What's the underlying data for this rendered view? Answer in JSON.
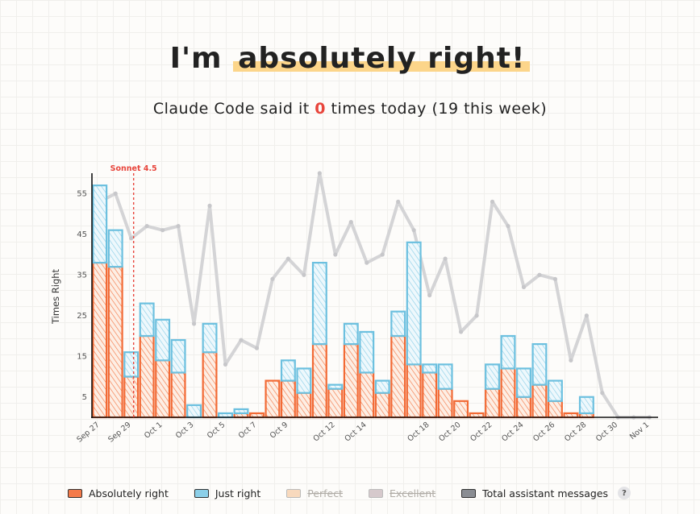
{
  "header": {
    "title_prefix": "I'm ",
    "title_highlight": "absolutely right!",
    "subtitle_before": "Claude Code said it ",
    "today_count": "0",
    "subtitle_after": " times today (19 this week)"
  },
  "legend": {
    "items": [
      {
        "label": "Absolutely right",
        "color": "#f47a4a",
        "enabled": true
      },
      {
        "label": "Just right",
        "color": "#8ccfe8",
        "enabled": true
      },
      {
        "label": "Perfect",
        "color": "#f8d9bd",
        "enabled": false
      },
      {
        "label": "Excellent",
        "color": "#d6c9cc",
        "enabled": false
      },
      {
        "label": "Total assistant messages",
        "color": "#8a8d93",
        "enabled": true
      }
    ],
    "help_label": "?"
  },
  "chart_data": {
    "type": "bar",
    "stacked": true,
    "ylabel": "Times Right",
    "xlabel": "",
    "ylim": [
      0,
      60
    ],
    "yticks": [
      5,
      15,
      25,
      35,
      45,
      55
    ],
    "x": [
      "Sep 27",
      "Sep 28",
      "Sep 29",
      "Sep 30",
      "Oct 1",
      "Oct 2",
      "Oct 3",
      "Oct 4",
      "Oct 5",
      "Oct 6",
      "Oct 7",
      "Oct 8",
      "Oct 9",
      "Oct 10",
      "Oct 11",
      "Oct 12",
      "Oct 13",
      "Oct 14",
      "Oct 15",
      "Oct 16",
      "Oct 17",
      "Oct 18",
      "Oct 19",
      "Oct 20",
      "Oct 21",
      "Oct 22",
      "Oct 23",
      "Oct 24",
      "Oct 25",
      "Oct 26",
      "Oct 27",
      "Oct 28",
      "Oct 29",
      "Oct 30",
      "Oct 31",
      "Nov 1"
    ],
    "xtick_labels": [
      "Sep 27",
      "Sep 29",
      "Oct 1",
      "Oct 3",
      "Oct 5",
      "Oct 7",
      "Oct 9",
      "Oct 12",
      "Oct 14",
      "Oct 18",
      "Oct 20",
      "Oct 22",
      "Oct 24",
      "Oct 26",
      "Oct 28",
      "Oct 30",
      "Nov 1"
    ],
    "series": [
      {
        "name": "Absolutely right",
        "color": "#f47a4a",
        "values": [
          38,
          37,
          10,
          20,
          14,
          11,
          0,
          16,
          0,
          1,
          1,
          9,
          9,
          6,
          18,
          7,
          18,
          11,
          6,
          20,
          13,
          11,
          7,
          4,
          1,
          7,
          12,
          5,
          8,
          4,
          1,
          1,
          0,
          0,
          0,
          0
        ]
      },
      {
        "name": "Just right",
        "color": "#8ccfe8",
        "values": [
          19,
          9,
          6,
          8,
          10,
          8,
          3,
          7,
          1,
          1,
          0,
          0,
          5,
          6,
          20,
          1,
          5,
          10,
          3,
          6,
          30,
          2,
          6,
          0,
          0,
          6,
          8,
          7,
          10,
          5,
          0,
          4,
          0,
          0,
          0,
          0
        ]
      },
      {
        "name": "Total assistant messages",
        "type": "line",
        "color": "#d4d4d6",
        "values": [
          53,
          55,
          44,
          47,
          46,
          47,
          23,
          52,
          13,
          19,
          17,
          34,
          39,
          35,
          60,
          40,
          48,
          38,
          40,
          53,
          46,
          30,
          39,
          21,
          25,
          53,
          47,
          32,
          35,
          34,
          14,
          25,
          6,
          0,
          0,
          0
        ]
      }
    ],
    "annotations": [
      {
        "label": "Sonnet 4.5",
        "x": "Sep 29",
        "color": "#e8453c"
      }
    ]
  }
}
